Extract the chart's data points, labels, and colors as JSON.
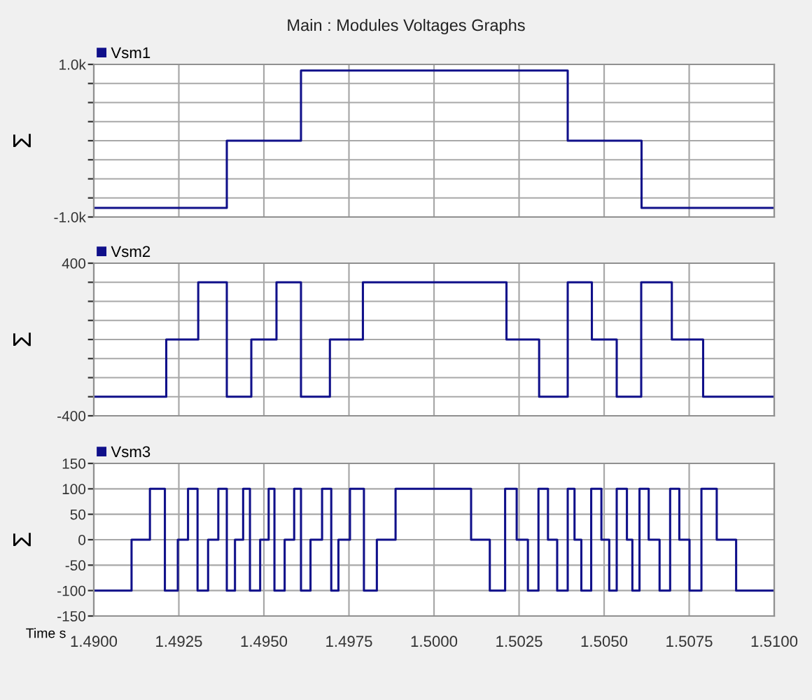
{
  "chart_data": [
    {
      "type": "step",
      "title": "Main : Modules Voltages Graphs",
      "ylabel": "Σ",
      "legend": "top left",
      "tick_labels": "y",
      "grid": true,
      "xlim": [
        1.49,
        1.51
      ],
      "xticks": [
        {
          "value": 1.49,
          "label": null
        },
        {
          "value": 1.4925,
          "label": null
        },
        {
          "value": 1.495,
          "label": null
        },
        {
          "value": 1.4975,
          "label": null
        },
        {
          "value": 1.5,
          "label": null
        },
        {
          "value": 1.5025,
          "label": null
        },
        {
          "value": 1.505,
          "label": null
        },
        {
          "value": 1.5075,
          "label": null
        },
        {
          "value": 1.51,
          "label": null
        }
      ],
      "ylim": [
        -1000,
        1000
      ],
      "yticks": [
        {
          "value": -1000,
          "label": "-1.0k"
        },
        {
          "value": -750,
          "label": null
        },
        {
          "value": -500,
          "label": null
        },
        {
          "value": -250,
          "label": null
        },
        {
          "value": 0,
          "label": null
        },
        {
          "value": 250,
          "label": null
        },
        {
          "value": 500,
          "label": null
        },
        {
          "value": 750,
          "label": null
        },
        {
          "value": 1000,
          "label": "1.0k"
        }
      ],
      "series": [
        {
          "name": "Vsm1",
          "color": "#10108a",
          "x": [
            1.49,
            1.49391,
            1.49609,
            1.50393,
            1.5061,
            1.51
          ],
          "values": [
            -880,
            0,
            920,
            0,
            -880,
            -880
          ]
        }
      ]
    },
    {
      "type": "step",
      "ylabel": "Σ",
      "legend": "top left",
      "tick_labels": "y",
      "grid": true,
      "xlim": [
        1.49,
        1.51
      ],
      "xticks": [
        {
          "value": 1.49,
          "label": null
        },
        {
          "value": 1.4925,
          "label": null
        },
        {
          "value": 1.495,
          "label": null
        },
        {
          "value": 1.4975,
          "label": null
        },
        {
          "value": 1.5,
          "label": null
        },
        {
          "value": 1.5025,
          "label": null
        },
        {
          "value": 1.505,
          "label": null
        },
        {
          "value": 1.5075,
          "label": null
        },
        {
          "value": 1.51,
          "label": null
        }
      ],
      "ylim": [
        -400,
        400
      ],
      "yticks": [
        -400,
        {
          "value": -300,
          "label": null
        },
        {
          "value": -200,
          "label": null
        },
        {
          "value": -100,
          "label": null
        },
        {
          "value": 0,
          "label": null
        },
        {
          "value": 100,
          "label": null
        },
        {
          "value": 200,
          "label": null
        },
        {
          "value": 300,
          "label": null
        },
        400
      ],
      "series": [
        {
          "name": "Vsm2",
          "color": "#10108a",
          "x": [
            1.49,
            1.49213,
            1.49307,
            1.49391,
            1.49463,
            1.49537,
            1.49609,
            1.49694,
            1.49791,
            1.50213,
            1.50309,
            1.50393,
            1.50464,
            1.50537,
            1.50609,
            1.50699,
            1.50791,
            1.51
          ],
          "values": [
            -300,
            0,
            300,
            -300,
            0,
            300,
            -300,
            0,
            300,
            0,
            -300,
            300,
            0,
            -300,
            300,
            0,
            -300,
            -300
          ]
        }
      ]
    },
    {
      "type": "step",
      "ylabel": "Σ",
      "xlabel": "Time s",
      "legend": "top left",
      "grid": true,
      "xlim": [
        1.49,
        1.51
      ],
      "xticks": [
        {
          "value": 1.49,
          "label": "1.4900"
        },
        {
          "value": 1.4925,
          "label": "1.4925"
        },
        {
          "value": 1.495,
          "label": "1.4950"
        },
        {
          "value": 1.4975,
          "label": "1.4975"
        },
        {
          "value": 1.5,
          "label": "1.5000"
        },
        {
          "value": 1.5025,
          "label": "1.5025"
        },
        {
          "value": 1.505,
          "label": "1.5050"
        },
        {
          "value": 1.5075,
          "label": "1.5075"
        },
        {
          "value": 1.51,
          "label": "1.5100"
        }
      ],
      "ylim": [
        -150,
        150
      ],
      "yticks": [
        -150,
        -100,
        -50,
        0,
        50,
        100,
        150
      ],
      "series": [
        {
          "name": "Vsm3",
          "color": "#10108a",
          "x": [
            1.49,
            1.49111,
            1.49165,
            1.49209,
            1.49247,
            1.49277,
            1.49305,
            1.49336,
            1.49366,
            1.49391,
            1.49415,
            1.49439,
            1.49459,
            1.49489,
            1.49514,
            1.49531,
            1.49561,
            1.49589,
            1.49609,
            1.49637,
            1.49671,
            1.49698,
            1.49719,
            1.49753,
            1.49794,
            1.49832,
            1.49887,
            1.50109,
            1.50164,
            1.50209,
            1.50243,
            1.50276,
            1.50307,
            1.50335,
            1.50362,
            1.50393,
            1.50413,
            1.50433,
            1.50462,
            1.50492,
            1.50515,
            1.50537,
            1.50567,
            1.50583,
            1.50604,
            1.50631,
            1.50663,
            1.50694,
            1.50721,
            1.50751,
            1.50786,
            1.50831,
            1.50888,
            1.51
          ],
          "values": [
            -100,
            0,
            100,
            -100,
            0,
            100,
            -100,
            0,
            100,
            -100,
            0,
            100,
            -100,
            0,
            100,
            -100,
            0,
            100,
            -100,
            0,
            100,
            -100,
            0,
            100,
            -100,
            0,
            100,
            0,
            -100,
            100,
            0,
            -100,
            100,
            0,
            -100,
            100,
            0,
            -100,
            100,
            0,
            -100,
            100,
            0,
            -100,
            100,
            0,
            -100,
            100,
            0,
            -100,
            100,
            0,
            -100,
            -100
          ]
        }
      ]
    }
  ]
}
